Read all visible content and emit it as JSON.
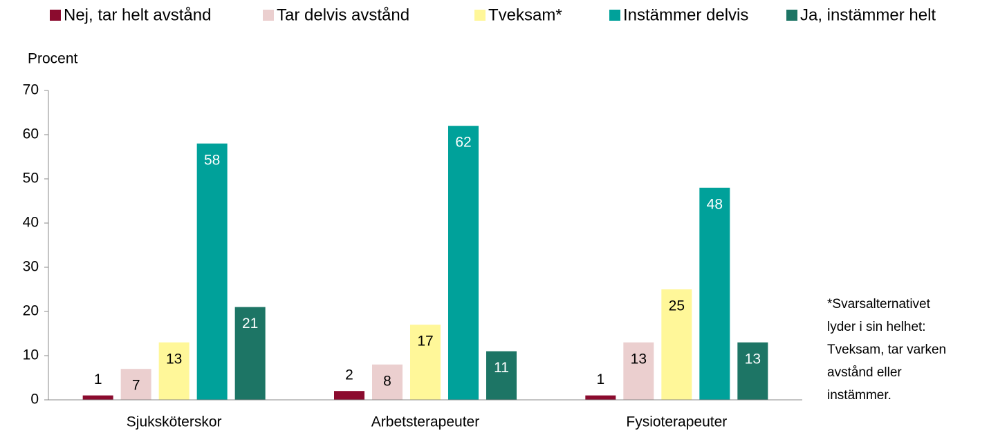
{
  "chart_data": {
    "type": "bar",
    "y_label": "Procent",
    "categories": [
      "Sjuksköterskor",
      "Arbetsterapeuter",
      "Fysioterapeuter"
    ],
    "series": [
      {
        "name": "Nej, tar helt avstånd",
        "color": "#8b0b2e",
        "values": [
          1,
          2,
          1
        ]
      },
      {
        "name": "Tar delvis avstånd",
        "color": "#ebcfcf",
        "values": [
          7,
          8,
          13
        ]
      },
      {
        "name": "Tveksam*",
        "color": "#fff799",
        "values": [
          13,
          17,
          25
        ]
      },
      {
        "name": "Instämmer delvis",
        "color": "#00a19a",
        "values": [
          58,
          62,
          48
        ]
      },
      {
        "name": "Ja, instämmer helt",
        "color": "#1d7565",
        "values": [
          21,
          11,
          13
        ]
      }
    ],
    "ylim": [
      0,
      70
    ],
    "yticks": [
      0,
      10,
      20,
      30,
      40,
      50,
      60,
      70
    ],
    "grid": false,
    "legend": "top",
    "note": [
      "*Svarsalternativet",
      "lyder i sin helhet:",
      "Tveksam, tar varken",
      "avstånd eller",
      "instämmer."
    ]
  }
}
